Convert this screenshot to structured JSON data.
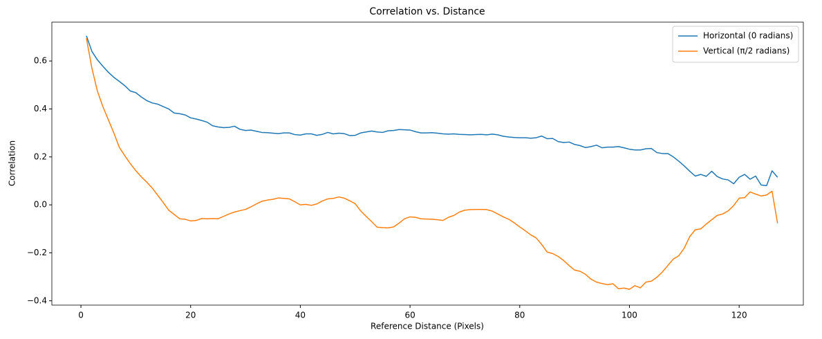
{
  "chart_data": {
    "type": "line",
    "title": "Correlation vs. Distance",
    "x_label": "Reference Distance (Pixels)",
    "y_label": "Correlation",
    "x": [
      1,
      2,
      3,
      4,
      5,
      6,
      7,
      8,
      9,
      10,
      11,
      12,
      13,
      14,
      15,
      16,
      17,
      18,
      19,
      20,
      21,
      22,
      23,
      24,
      25,
      26,
      27,
      28,
      29,
      30,
      31,
      32,
      33,
      34,
      35,
      36,
      37,
      38,
      39,
      40,
      41,
      42,
      43,
      44,
      45,
      46,
      47,
      48,
      49,
      50,
      51,
      52,
      53,
      54,
      55,
      56,
      57,
      58,
      59,
      60,
      61,
      62,
      63,
      64,
      65,
      66,
      67,
      68,
      69,
      70,
      71,
      72,
      73,
      74,
      75,
      76,
      77,
      78,
      79,
      80,
      81,
      82,
      83,
      84,
      85,
      86,
      87,
      88,
      89,
      90,
      91,
      92,
      93,
      94,
      95,
      96,
      97,
      98,
      99,
      100,
      101,
      102,
      103,
      104,
      105,
      106,
      107,
      108,
      109,
      110,
      111,
      112,
      113,
      114,
      115,
      116,
      117,
      118,
      119,
      120,
      121,
      122,
      123,
      124,
      125,
      126,
      127
    ],
    "series": [
      {
        "name": "Horizontal (0 radians)",
        "color": "#1f77b4",
        "values": [
          0.705,
          0.64,
          0.605,
          0.578,
          0.553,
          0.532,
          0.515,
          0.497,
          0.475,
          0.468,
          0.45,
          0.435,
          0.425,
          0.42,
          0.41,
          0.4,
          0.383,
          0.38,
          0.375,
          0.363,
          0.358,
          0.352,
          0.345,
          0.33,
          0.325,
          0.322,
          0.323,
          0.328,
          0.315,
          0.31,
          0.312,
          0.307,
          0.302,
          0.301,
          0.299,
          0.297,
          0.3,
          0.3,
          0.293,
          0.291,
          0.296,
          0.296,
          0.29,
          0.294,
          0.302,
          0.296,
          0.299,
          0.297,
          0.289,
          0.29,
          0.3,
          0.304,
          0.308,
          0.304,
          0.302,
          0.309,
          0.31,
          0.314,
          0.313,
          0.312,
          0.305,
          0.3,
          0.3,
          0.301,
          0.299,
          0.296,
          0.295,
          0.296,
          0.294,
          0.293,
          0.292,
          0.293,
          0.294,
          0.292,
          0.295,
          0.292,
          0.286,
          0.283,
          0.281,
          0.28,
          0.28,
          0.278,
          0.28,
          0.287,
          0.276,
          0.277,
          0.264,
          0.26,
          0.262,
          0.252,
          0.247,
          0.239,
          0.243,
          0.249,
          0.238,
          0.241,
          0.241,
          0.243,
          0.238,
          0.232,
          0.229,
          0.229,
          0.234,
          0.235,
          0.218,
          0.214,
          0.214,
          0.2,
          0.182,
          0.162,
          0.14,
          0.12,
          0.127,
          0.119,
          0.14,
          0.118,
          0.108,
          0.104,
          0.088,
          0.115,
          0.127,
          0.107,
          0.12,
          0.083,
          0.08,
          0.142,
          0.115
        ]
      },
      {
        "name": "Vertical (π/2 radians)",
        "color": "#ff7f0e",
        "values": [
          0.695,
          0.57,
          0.475,
          0.41,
          0.355,
          0.3,
          0.24,
          0.205,
          0.172,
          0.143,
          0.117,
          0.095,
          0.07,
          0.04,
          0.01,
          -0.022,
          -0.04,
          -0.058,
          -0.06,
          -0.067,
          -0.065,
          -0.057,
          -0.058,
          -0.057,
          -0.058,
          -0.048,
          -0.038,
          -0.03,
          -0.024,
          -0.019,
          -0.008,
          0.004,
          0.015,
          0.02,
          0.023,
          0.029,
          0.027,
          0.025,
          0.013,
          0.0,
          0.002,
          -0.002,
          0.004,
          0.016,
          0.025,
          0.027,
          0.033,
          0.028,
          0.017,
          0.005,
          -0.025,
          -0.048,
          -0.07,
          -0.093,
          -0.095,
          -0.096,
          -0.092,
          -0.076,
          -0.058,
          -0.05,
          -0.052,
          -0.058,
          -0.059,
          -0.06,
          -0.062,
          -0.065,
          -0.052,
          -0.044,
          -0.03,
          -0.022,
          -0.02,
          -0.019,
          -0.019,
          -0.02,
          -0.026,
          -0.038,
          -0.05,
          -0.06,
          -0.075,
          -0.092,
          -0.108,
          -0.125,
          -0.138,
          -0.165,
          -0.197,
          -0.203,
          -0.215,
          -0.232,
          -0.253,
          -0.272,
          -0.277,
          -0.29,
          -0.31,
          -0.322,
          -0.328,
          -0.333,
          -0.329,
          -0.35,
          -0.347,
          -0.352,
          -0.337,
          -0.346,
          -0.322,
          -0.318,
          -0.302,
          -0.28,
          -0.253,
          -0.226,
          -0.212,
          -0.18,
          -0.132,
          -0.104,
          -0.1,
          -0.08,
          -0.062,
          -0.044,
          -0.038,
          -0.025,
          -0.003,
          0.028,
          0.03,
          0.054,
          0.045,
          0.037,
          0.041,
          0.057,
          -0.077
        ]
      }
    ],
    "xlim": [
      -5.3,
      131.7
    ],
    "ylim": [
      -0.418,
      0.762
    ],
    "xticks": [
      0,
      20,
      40,
      60,
      80,
      100,
      120
    ],
    "yticks": [
      {
        "value": -0.4,
        "label": "−0.4"
      },
      {
        "value": -0.2,
        "label": "−0.2"
      },
      {
        "value": 0,
        "label": "0.0"
      },
      0.2,
      0.4,
      0.6
    ],
    "grid": false,
    "legend": "upper right"
  }
}
